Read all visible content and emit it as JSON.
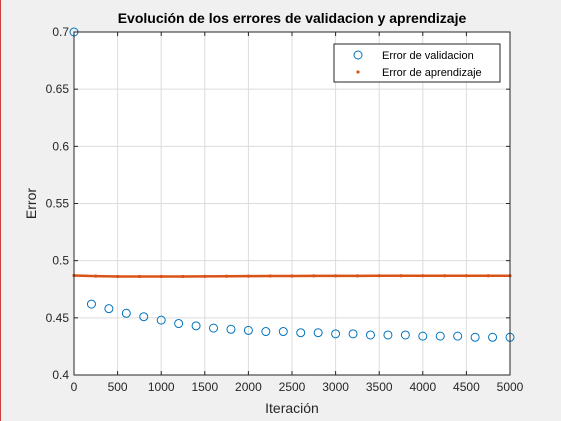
{
  "chart_data": {
    "type": "scatter",
    "title": "Evolución de los errores de validacion y aprendizaje",
    "xlabel": "Iteración",
    "ylabel": "Error",
    "xlim": [
      0,
      5000
    ],
    "ylim": [
      0.4,
      0.7
    ],
    "xticks": [
      0,
      500,
      1000,
      1500,
      2000,
      2500,
      3000,
      3500,
      4000,
      4500,
      5000
    ],
    "yticks": [
      0.4,
      0.45,
      0.5,
      0.55,
      0.6,
      0.65,
      0.7
    ],
    "xtick_labels": [
      "0",
      "500",
      "1000",
      "1500",
      "2000",
      "2500",
      "3000",
      "3500",
      "4000",
      "4500",
      "5000"
    ],
    "ytick_labels": [
      "0.4",
      "0.45",
      "0.5",
      "0.55",
      "0.6",
      "0.65",
      "0.7"
    ],
    "grid": true,
    "legend_position": "top-right",
    "series": [
      {
        "name": "Error de validacion",
        "marker": "circle",
        "color": "#0072bd",
        "x": [
          0,
          200,
          400,
          600,
          800,
          1000,
          1200,
          1400,
          1600,
          1800,
          2000,
          2200,
          2400,
          2600,
          2800,
          3000,
          3200,
          3400,
          3600,
          3800,
          4000,
          4200,
          4400,
          4600,
          4800,
          5000
        ],
        "y": [
          0.7,
          0.462,
          0.458,
          0.454,
          0.451,
          0.448,
          0.445,
          0.443,
          0.441,
          0.44,
          0.439,
          0.438,
          0.438,
          0.437,
          0.437,
          0.436,
          0.436,
          0.435,
          0.435,
          0.435,
          0.434,
          0.434,
          0.434,
          0.433,
          0.433,
          0.433
        ]
      },
      {
        "name": "Error de aprendizaje",
        "marker": "dot",
        "color": "#d95319",
        "x": [
          0,
          250,
          500,
          750,
          1000,
          1250,
          1500,
          1750,
          2000,
          2250,
          2500,
          2750,
          3000,
          3250,
          3500,
          3750,
          4000,
          4250,
          4500,
          4750,
          5000
        ],
        "y": [
          0.487,
          0.4865,
          0.4862,
          0.4862,
          0.4862,
          0.4862,
          0.4863,
          0.4864,
          0.4865,
          0.4866,
          0.4866,
          0.4867,
          0.4867,
          0.4867,
          0.4868,
          0.4868,
          0.4868,
          0.4868,
          0.4868,
          0.4868,
          0.4868
        ]
      }
    ]
  }
}
